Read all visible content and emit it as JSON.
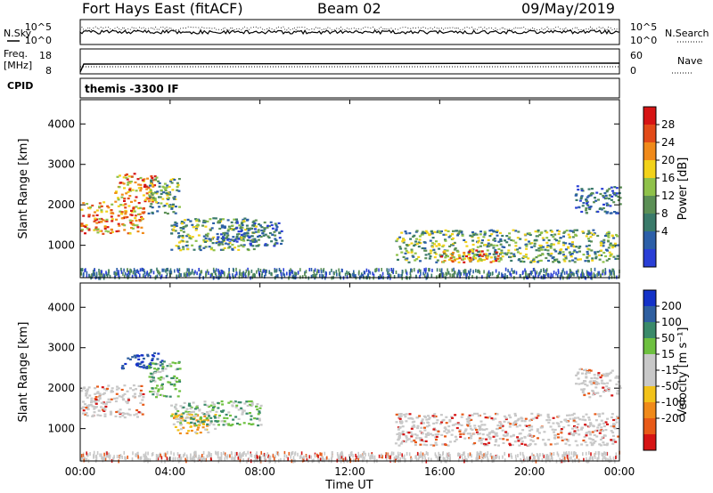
{
  "header": {
    "title": "Fort Hays East (fitACF)",
    "beam": "Beam 02",
    "date": "09/May/2019"
  },
  "strip_labels": {
    "nsky": "N.Sky",
    "nsearch": "N.Search",
    "freq_top": "Freq.",
    "freq_unit": "[MHz]",
    "nave": "Nave",
    "cpid": "CPID",
    "cpid_value": "themis -3300 IF",
    "nsky_ticks": [
      "10^5",
      "10^0"
    ],
    "nsearch_ticks": [
      "10^5",
      "10^0"
    ],
    "freq_ticks": [
      "18",
      "8"
    ],
    "nave_ticks": [
      "60",
      "0"
    ]
  },
  "x_axis": {
    "title": "Time UT",
    "ticks": [
      "00:00",
      "04:00",
      "08:00",
      "12:00",
      "16:00",
      "20:00",
      "00:00"
    ]
  },
  "chart_data": [
    {
      "type": "heatmap",
      "name": "power",
      "ylabel": "Slant Range [km]",
      "yticks": [
        1000,
        2000,
        3000,
        4000
      ],
      "ylim": [
        200,
        4600
      ],
      "xlim_hours": [
        0,
        24
      ],
      "colorbar": {
        "label": "Power [dB]",
        "ticks": [
          "4",
          "8",
          "12",
          "16",
          "20",
          "24",
          "28"
        ],
        "colors": [
          "#2a3fd6",
          "#2c5fa8",
          "#3a7a6a",
          "#5b8f55",
          "#8fc14a",
          "#f2d21a",
          "#f08a1a",
          "#e24a18",
          "#d61414"
        ]
      },
      "features": [
        {
          "t": [
            0.0,
            2.8
          ],
          "range": [
            1300,
            2100
          ],
          "level": "high"
        },
        {
          "t": [
            1.5,
            3.3
          ],
          "range": [
            2100,
            2800
          ],
          "level": "high"
        },
        {
          "t": [
            3.0,
            4.4
          ],
          "range": [
            1800,
            2700
          ],
          "level": "mid"
        },
        {
          "t": [
            4.0,
            7.9
          ],
          "range": [
            900,
            1700
          ],
          "level": "mid"
        },
        {
          "t": [
            6.0,
            9.0
          ],
          "range": [
            1000,
            1600
          ],
          "level": "low"
        },
        {
          "t": [
            14.0,
            23.9
          ],
          "range": [
            600,
            1400
          ],
          "level": "mid"
        },
        {
          "t": [
            16.0,
            18.6
          ],
          "range": [
            600,
            900
          ],
          "level": "high"
        },
        {
          "t": [
            22.0,
            24.0
          ],
          "range": [
            1800,
            2500
          ],
          "level": "low"
        }
      ]
    },
    {
      "type": "heatmap",
      "name": "velocity",
      "ylabel": "Slant Range [km]",
      "yticks": [
        1000,
        2000,
        3000,
        4000
      ],
      "ylim": [
        200,
        4600
      ],
      "xlim_hours": [
        0,
        24
      ],
      "colorbar": {
        "label": "Velocity [m s⁻¹]",
        "ticks": [
          "200",
          "100",
          "50",
          "15",
          "-15",
          "-50",
          "-100",
          "-200"
        ],
        "colors": [
          "#1432c8",
          "#2f5fa0",
          "#3a8a6a",
          "#6ec040",
          "#c8c8c8",
          "#c8c8c8",
          "#f2c21a",
          "#f08a1a",
          "#e85a18",
          "#d61414"
        ]
      },
      "features": [
        {
          "t": [
            0.0,
            2.8
          ],
          "range": [
            1300,
            2100
          ],
          "level": "gray"
        },
        {
          "t": [
            1.8,
            3.6
          ],
          "range": [
            2500,
            2900
          ],
          "level": "blue"
        },
        {
          "t": [
            3.0,
            4.4
          ],
          "range": [
            1800,
            2700
          ],
          "level": "green"
        },
        {
          "t": [
            4.0,
            6.0
          ],
          "range": [
            900,
            1400
          ],
          "level": "orange"
        },
        {
          "t": [
            4.0,
            8.0
          ],
          "range": [
            1100,
            1700
          ],
          "level": "green"
        },
        {
          "t": [
            14.0,
            23.9
          ],
          "range": [
            600,
            1400
          ],
          "level": "gray"
        },
        {
          "t": [
            22.0,
            24.0
          ],
          "range": [
            1800,
            2500
          ],
          "level": "gray"
        }
      ]
    }
  ]
}
